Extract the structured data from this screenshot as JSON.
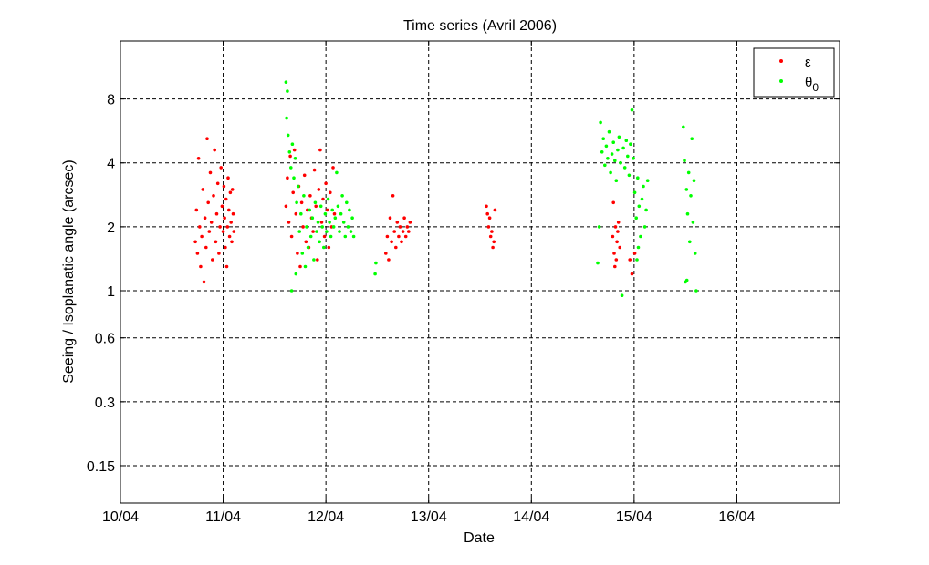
{
  "chart_data": {
    "type": "scatter",
    "title": "Time series (Avril 2006)",
    "xlabel": "Date",
    "ylabel": "Seeing / Isoplanatic angle (arcsec)",
    "x_scale": "date",
    "y_scale": "log",
    "xlim": [
      "2006-04-10T00:00",
      "2006-04-17T00:00"
    ],
    "ylim": [
      0.1,
      15
    ],
    "x_ticks": [
      "10/04",
      "11/04",
      "12/04",
      "13/04",
      "14/04",
      "15/04",
      "16/04"
    ],
    "x_tick_dates": [
      "2006-04-10T00:00",
      "2006-04-11T00:00",
      "2006-04-12T00:00",
      "2006-04-13T00:00",
      "2006-04-14T00:00",
      "2006-04-15T00:00",
      "2006-04-16T00:00"
    ],
    "y_ticks": [
      0.15,
      0.3,
      0.6,
      1,
      2,
      4,
      8
    ],
    "y_tick_labels": [
      "0.15",
      "0.3",
      "0.6",
      "1",
      "2",
      "4",
      "8"
    ],
    "grid": true,
    "legend_position": "top-right",
    "series": [
      {
        "name": "ε",
        "legend_base": "ε",
        "legend_sub": "",
        "color": "#ff0000",
        "points": [
          [
            "2006-04-10T17:30",
            1.7
          ],
          [
            "2006-04-10T17:45",
            2.4
          ],
          [
            "2006-04-10T18:00",
            1.5
          ],
          [
            "2006-04-10T18:15",
            4.2
          ],
          [
            "2006-04-10T18:30",
            2.0
          ],
          [
            "2006-04-10T18:45",
            1.3
          ],
          [
            "2006-04-10T19:00",
            1.8
          ],
          [
            "2006-04-10T19:15",
            3.0
          ],
          [
            "2006-04-10T19:30",
            1.1
          ],
          [
            "2006-04-10T19:45",
            2.2
          ],
          [
            "2006-04-10T20:00",
            1.6
          ],
          [
            "2006-04-10T20:15",
            5.2
          ],
          [
            "2006-04-10T20:30",
            2.6
          ],
          [
            "2006-04-10T20:45",
            1.9
          ],
          [
            "2006-04-10T21:00",
            3.6
          ],
          [
            "2006-04-10T21:15",
            2.1
          ],
          [
            "2006-04-10T21:30",
            1.4
          ],
          [
            "2006-04-10T21:45",
            2.8
          ],
          [
            "2006-04-10T22:00",
            4.6
          ],
          [
            "2006-04-10T22:15",
            1.7
          ],
          [
            "2006-04-10T22:30",
            2.3
          ],
          [
            "2006-04-10T22:45",
            3.2
          ],
          [
            "2006-04-10T23:00",
            1.5
          ],
          [
            "2006-04-10T23:15",
            2.0
          ],
          [
            "2006-04-10T23:30",
            3.8
          ],
          [
            "2006-04-10T23:45",
            2.5
          ],
          [
            "2006-04-11T00:00",
            1.9
          ],
          [
            "2006-04-11T00:10",
            3.1
          ],
          [
            "2006-04-11T00:20",
            2.2
          ],
          [
            "2006-04-11T00:30",
            1.6
          ],
          [
            "2006-04-11T00:40",
            2.7
          ],
          [
            "2006-04-11T00:50",
            1.3
          ],
          [
            "2006-04-11T01:00",
            2.0
          ],
          [
            "2006-04-11T01:10",
            3.4
          ],
          [
            "2006-04-11T01:20",
            2.4
          ],
          [
            "2006-04-11T01:30",
            1.8
          ],
          [
            "2006-04-11T01:40",
            2.9
          ],
          [
            "2006-04-11T01:50",
            2.1
          ],
          [
            "2006-04-11T02:00",
            1.7
          ],
          [
            "2006-04-11T02:10",
            3.0
          ],
          [
            "2006-04-11T02:20",
            2.3
          ],
          [
            "2006-04-11T02:30",
            1.9
          ],
          [
            "2006-04-11T14:40",
            2.5
          ],
          [
            "2006-04-11T15:00",
            3.4
          ],
          [
            "2006-04-11T15:20",
            2.1
          ],
          [
            "2006-04-11T15:40",
            4.3
          ],
          [
            "2006-04-11T16:00",
            1.8
          ],
          [
            "2006-04-11T16:20",
            2.9
          ],
          [
            "2006-04-11T16:40",
            4.6
          ],
          [
            "2006-04-11T17:00",
            2.3
          ],
          [
            "2006-04-11T17:20",
            1.5
          ],
          [
            "2006-04-11T17:40",
            3.1
          ],
          [
            "2006-04-11T18:00",
            1.3
          ],
          [
            "2006-04-11T18:20",
            2.6
          ],
          [
            "2006-04-11T18:40",
            2.0
          ],
          [
            "2006-04-11T19:00",
            3.5
          ],
          [
            "2006-04-11T19:20",
            1.7
          ],
          [
            "2006-04-11T19:40",
            2.4
          ],
          [
            "2006-04-11T20:00",
            1.6
          ],
          [
            "2006-04-11T20:20",
            2.8
          ],
          [
            "2006-04-11T20:40",
            2.2
          ],
          [
            "2006-04-11T21:00",
            1.9
          ],
          [
            "2006-04-11T21:20",
            3.7
          ],
          [
            "2006-04-11T21:40",
            2.5
          ],
          [
            "2006-04-11T22:00",
            1.4
          ],
          [
            "2006-04-11T22:20",
            3.0
          ],
          [
            "2006-04-11T22:40",
            4.6
          ],
          [
            "2006-04-11T23:00",
            2.1
          ],
          [
            "2006-04-11T23:20",
            2.7
          ],
          [
            "2006-04-11T23:40",
            1.8
          ],
          [
            "2006-04-12T00:00",
            3.2
          ],
          [
            "2006-04-12T00:20",
            2.4
          ],
          [
            "2006-04-12T00:40",
            1.6
          ],
          [
            "2006-04-12T01:00",
            2.9
          ],
          [
            "2006-04-12T01:20",
            2.0
          ],
          [
            "2006-04-12T01:40",
            3.8
          ],
          [
            "2006-04-12T02:00",
            2.3
          ],
          [
            "2006-04-12T14:00",
            1.5
          ],
          [
            "2006-04-12T14:20",
            1.8
          ],
          [
            "2006-04-12T14:40",
            1.4
          ],
          [
            "2006-04-12T15:00",
            2.2
          ],
          [
            "2006-04-12T15:20",
            1.7
          ],
          [
            "2006-04-12T15:40",
            2.8
          ],
          [
            "2006-04-12T16:00",
            1.9
          ],
          [
            "2006-04-12T16:20",
            1.6
          ],
          [
            "2006-04-12T16:40",
            2.1
          ],
          [
            "2006-04-12T17:00",
            1.8
          ],
          [
            "2006-04-12T17:20",
            2.0
          ],
          [
            "2006-04-12T17:40",
            1.7
          ],
          [
            "2006-04-12T18:00",
            1.9
          ],
          [
            "2006-04-12T18:20",
            2.2
          ],
          [
            "2006-04-12T18:40",
            1.8
          ],
          [
            "2006-04-12T19:00",
            2.0
          ],
          [
            "2006-04-12T19:20",
            1.9
          ],
          [
            "2006-04-12T19:40",
            2.1
          ],
          [
            "2006-04-13T13:30",
            2.5
          ],
          [
            "2006-04-13T13:45",
            2.3
          ],
          [
            "2006-04-13T14:00",
            2.0
          ],
          [
            "2006-04-13T14:15",
            2.2
          ],
          [
            "2006-04-13T14:30",
            1.8
          ],
          [
            "2006-04-13T14:45",
            1.9
          ],
          [
            "2006-04-13T15:00",
            1.6
          ],
          [
            "2006-04-13T15:15",
            1.7
          ],
          [
            "2006-04-13T15:30",
            2.4
          ],
          [
            "2006-04-14T19:00",
            1.8
          ],
          [
            "2006-04-14T19:10",
            2.6
          ],
          [
            "2006-04-14T19:20",
            1.5
          ],
          [
            "2006-04-14T19:30",
            1.3
          ],
          [
            "2006-04-14T19:40",
            2.0
          ],
          [
            "2006-04-14T19:50",
            1.4
          ],
          [
            "2006-04-14T20:00",
            1.7
          ],
          [
            "2006-04-14T20:10",
            1.9
          ],
          [
            "2006-04-14T20:20",
            2.1
          ],
          [
            "2006-04-14T20:40",
            1.6
          ],
          [
            "2006-04-14T23:00",
            1.4
          ],
          [
            "2006-04-14T23:30",
            1.2
          ],
          [
            "2006-04-15T00:10",
            1.5
          ]
        ]
      },
      {
        "name": "θ0",
        "legend_base": "θ",
        "legend_sub": "0",
        "color": "#00ff00",
        "points": [
          [
            "2006-04-11T14:40",
            9.6
          ],
          [
            "2006-04-11T15:00",
            8.7
          ],
          [
            "2006-04-11T14:50",
            6.5
          ],
          [
            "2006-04-11T15:10",
            5.4
          ],
          [
            "2006-04-11T15:30",
            4.5
          ],
          [
            "2006-04-11T15:50",
            3.8
          ],
          [
            "2006-04-11T16:10",
            4.9
          ],
          [
            "2006-04-11T16:30",
            3.4
          ],
          [
            "2006-04-11T16:50",
            4.2
          ],
          [
            "2006-04-11T17:10",
            2.6
          ],
          [
            "2006-04-11T17:30",
            3.1
          ],
          [
            "2006-04-11T17:50",
            1.9
          ],
          [
            "2006-04-11T18:10",
            2.3
          ],
          [
            "2006-04-11T18:30",
            1.5
          ],
          [
            "2006-04-11T18:50",
            2.8
          ],
          [
            "2006-04-11T19:10",
            1.3
          ],
          [
            "2006-04-11T19:30",
            2.0
          ],
          [
            "2006-04-11T19:50",
            1.6
          ],
          [
            "2006-04-11T20:10",
            2.4
          ],
          [
            "2006-04-11T20:30",
            1.8
          ],
          [
            "2006-04-11T20:50",
            2.2
          ],
          [
            "2006-04-11T21:10",
            1.4
          ],
          [
            "2006-04-11T21:30",
            2.6
          ],
          [
            "2006-04-11T21:50",
            1.9
          ],
          [
            "2006-04-11T22:10",
            2.1
          ],
          [
            "2006-04-11T22:30",
            1.7
          ],
          [
            "2006-04-11T22:50",
            2.5
          ],
          [
            "2006-04-11T23:10",
            2.0
          ],
          [
            "2006-04-11T23:30",
            1.6
          ],
          [
            "2006-04-11T23:50",
            2.3
          ],
          [
            "2006-04-12T00:10",
            1.9
          ],
          [
            "2006-04-12T00:30",
            2.7
          ],
          [
            "2006-04-12T00:50",
            2.1
          ],
          [
            "2006-04-12T01:10",
            1.8
          ],
          [
            "2006-04-12T01:30",
            2.4
          ],
          [
            "2006-04-12T01:50",
            2.0
          ],
          [
            "2006-04-12T02:10",
            2.2
          ],
          [
            "2006-04-12T02:30",
            3.6
          ],
          [
            "2006-04-12T02:50",
            2.5
          ],
          [
            "2006-04-12T03:10",
            1.9
          ],
          [
            "2006-04-12T03:30",
            2.3
          ],
          [
            "2006-04-12T03:50",
            2.8
          ],
          [
            "2006-04-12T04:10",
            2.1
          ],
          [
            "2006-04-12T04:30",
            1.8
          ],
          [
            "2006-04-12T04:50",
            2.6
          ],
          [
            "2006-04-12T05:10",
            2.0
          ],
          [
            "2006-04-12T05:30",
            2.4
          ],
          [
            "2006-04-12T05:50",
            1.9
          ],
          [
            "2006-04-12T06:10",
            2.2
          ],
          [
            "2006-04-12T06:30",
            1.8
          ],
          [
            "2006-04-11T16:00",
            1.0
          ],
          [
            "2006-04-11T17:00",
            1.2
          ],
          [
            "2006-04-12T11:30",
            1.2
          ],
          [
            "2006-04-12T11:40",
            1.35
          ],
          [
            "2006-04-14T15:30",
            1.35
          ],
          [
            "2006-04-14T15:50",
            2.0
          ],
          [
            "2006-04-14T16:10",
            6.2
          ],
          [
            "2006-04-14T16:30",
            4.5
          ],
          [
            "2006-04-14T16:50",
            5.2
          ],
          [
            "2006-04-14T17:10",
            3.9
          ],
          [
            "2006-04-14T17:30",
            4.8
          ],
          [
            "2006-04-14T17:50",
            4.2
          ],
          [
            "2006-04-14T18:10",
            5.6
          ],
          [
            "2006-04-14T18:30",
            3.6
          ],
          [
            "2006-04-14T18:50",
            4.4
          ],
          [
            "2006-04-14T19:10",
            5.0
          ],
          [
            "2006-04-14T19:30",
            4.1
          ],
          [
            "2006-04-14T19:50",
            3.3
          ],
          [
            "2006-04-14T20:10",
            4.6
          ],
          [
            "2006-04-14T20:30",
            5.3
          ],
          [
            "2006-04-14T20:50",
            4.0
          ],
          [
            "2006-04-14T21:10",
            0.95
          ],
          [
            "2006-04-14T21:30",
            4.7
          ],
          [
            "2006-04-14T21:50",
            3.8
          ],
          [
            "2006-04-14T22:10",
            5.1
          ],
          [
            "2006-04-14T22:30",
            4.3
          ],
          [
            "2006-04-14T22:50",
            3.5
          ],
          [
            "2006-04-14T23:10",
            4.9
          ],
          [
            "2006-04-14T23:30",
            7.1
          ],
          [
            "2006-04-14T23:50",
            4.2
          ],
          [
            "2006-04-15T00:10",
            2.9
          ],
          [
            "2006-04-15T00:30",
            2.2
          ],
          [
            "2006-04-15T00:50",
            3.4
          ],
          [
            "2006-04-15T01:10",
            2.5
          ],
          [
            "2006-04-15T01:30",
            1.8
          ],
          [
            "2006-04-15T01:50",
            2.7
          ],
          [
            "2006-04-15T02:10",
            3.1
          ],
          [
            "2006-04-15T02:30",
            2.0
          ],
          [
            "2006-04-15T02:50",
            2.4
          ],
          [
            "2006-04-15T03:10",
            3.3
          ],
          [
            "2006-04-15T00:40",
            1.4
          ],
          [
            "2006-04-15T01:00",
            1.6
          ],
          [
            "2006-04-15T11:30",
            5.9
          ],
          [
            "2006-04-15T11:45",
            4.1
          ],
          [
            "2006-04-15T12:00",
            1.1
          ],
          [
            "2006-04-15T12:15",
            3.0
          ],
          [
            "2006-04-15T12:30",
            2.3
          ],
          [
            "2006-04-15T12:45",
            3.6
          ],
          [
            "2006-04-15T13:00",
            1.7
          ],
          [
            "2006-04-15T13:15",
            2.8
          ],
          [
            "2006-04-15T13:30",
            5.2
          ],
          [
            "2006-04-15T13:45",
            2.1
          ],
          [
            "2006-04-15T14:00",
            3.3
          ],
          [
            "2006-04-15T14:15",
            1.5
          ],
          [
            "2006-04-15T14:30",
            1.0
          ],
          [
            "2006-04-15T12:20",
            1.12
          ]
        ]
      }
    ]
  }
}
